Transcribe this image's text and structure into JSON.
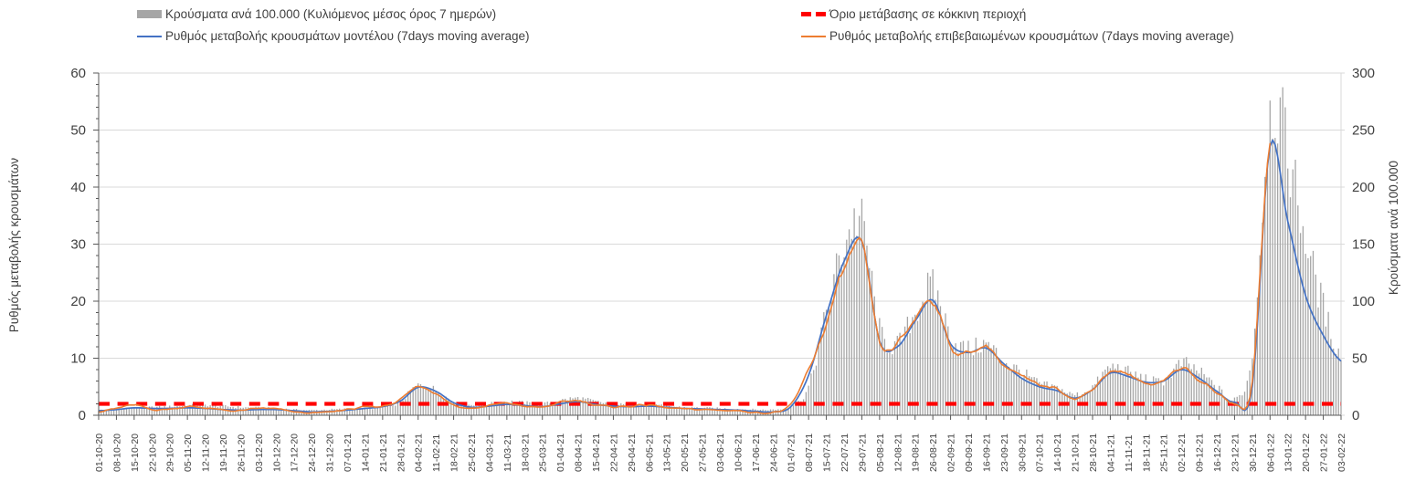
{
  "legend": {
    "bars": "Κρούσματα ανά 100.000 (Κυλιόμενος μέσος όρος 7 ημερών)",
    "model": "Ρυθμός μεταβολής κρουσμάτων μοντέλου (7days moving average)",
    "threshold": "Όριο μετάβασης σε κόκκινη περιοχή",
    "confirmed": "Ρυθμός μεταβολής επιβεβαιωμένων κρουσμάτων (7days moving average)"
  },
  "axes": {
    "left_title": "Ρυθμός μεταβολής κρουσμάτων",
    "right_title": "Κρούσματα ανά 100.000",
    "left_ticks": [
      0,
      10,
      20,
      30,
      40,
      50,
      60
    ],
    "right_ticks": [
      0,
      50,
      100,
      150,
      200,
      250,
      300
    ],
    "left_ylim": [
      0,
      60
    ],
    "right_ylim": [
      0,
      300
    ]
  },
  "colors": {
    "bars": "#a6a6a6",
    "model": "#4472c4",
    "confirmed": "#ed7d31",
    "threshold": "#ff0000",
    "gridline": "#d9d9d9",
    "axis": "#595959",
    "text": "#404040"
  },
  "chart_data": {
    "type": "bar",
    "subtype": "combo bar+line, dual axis, weekly-labelled daily series",
    "title": "",
    "xlabel": "",
    "legend_position": "top",
    "grid": "horizontal only",
    "categories": [
      "01-10-20",
      "08-10-20",
      "15-10-20",
      "22-10-20",
      "29-10-20",
      "05-11-20",
      "12-11-20",
      "19-11-20",
      "26-11-20",
      "03-12-20",
      "10-12-20",
      "17-12-20",
      "24-12-20",
      "31-12-20",
      "07-01-21",
      "14-01-21",
      "21-01-21",
      "28-01-21",
      "04-02-21",
      "11-02-21",
      "18-02-21",
      "25-02-21",
      "04-03-21",
      "11-03-21",
      "18-03-21",
      "25-03-21",
      "01-04-21",
      "08-04-21",
      "15-04-21",
      "22-04-21",
      "29-04-21",
      "06-05-21",
      "13-05-21",
      "20-05-21",
      "27-05-21",
      "03-06-21",
      "10-06-21",
      "17-06-21",
      "24-06-21",
      "01-07-21",
      "08-07-21",
      "15-07-21",
      "22-07-21",
      "29-07-21",
      "05-08-21",
      "12-08-21",
      "19-08-21",
      "26-08-21",
      "02-09-21",
      "09-09-21",
      "16-09-21",
      "23-09-21",
      "30-09-21",
      "07-10-21",
      "14-10-21",
      "21-10-21",
      "28-10-21",
      "04-11-21",
      "11-11-21",
      "18-11-21",
      "25-11-21",
      "02-12-21",
      "09-12-21",
      "16-12-21",
      "23-12-21",
      "30-12-21",
      "06-01-22",
      "13-01-22",
      "20-01-22",
      "27-01-22",
      "03-02-22"
    ],
    "series": [
      {
        "name": "Κρούσματα ανά 100.000 (Κυλιόμενος μέσος όρος 7 ημερών)",
        "type": "bar",
        "axis": "right",
        "color": "#a6a6a6",
        "values": [
          4.5,
          5.5,
          6.5,
          7,
          7.5,
          8.5,
          9,
          8,
          7,
          6.5,
          6,
          5,
          4.5,
          5,
          5.5,
          6,
          7,
          12,
          26,
          22,
          12,
          9,
          10,
          12,
          11,
          10,
          13,
          15,
          12,
          10,
          9,
          9,
          8,
          7,
          6.5,
          6,
          5.5,
          5,
          5,
          8,
          25,
          90,
          150,
          168,
          75,
          62,
          90,
          112,
          70,
          58,
          62,
          48,
          38,
          28,
          24,
          18,
          25,
          42,
          38,
          32,
          30,
          45,
          38,
          25,
          14,
          55,
          265,
          230,
          155,
          95,
          52
        ]
      },
      {
        "name": "Ρυθμός μεταβολής κρουσμάτων μοντέλου (7days moving average)",
        "type": "line",
        "axis": "left",
        "color": "#4472c4",
        "values": [
          0.8,
          1.0,
          1.3,
          1.2,
          1.2,
          1.3,
          1.2,
          1.0,
          0.9,
          1.0,
          1.0,
          0.8,
          0.6,
          0.7,
          0.9,
          1.2,
          1.5,
          2.5,
          4.9,
          4.2,
          2.2,
          1.4,
          1.6,
          1.9,
          1.7,
          1.5,
          2.0,
          2.4,
          1.9,
          1.6,
          1.5,
          1.6,
          1.4,
          1.2,
          1.1,
          1.0,
          0.9,
          0.7,
          0.6,
          1.5,
          7,
          17.5,
          27,
          30.5,
          13,
          12,
          16.5,
          20.2,
          12.5,
          11,
          11.8,
          9,
          6.5,
          5.0,
          4.3,
          3.0,
          4.5,
          7.4,
          6.8,
          5.8,
          6.0,
          8.0,
          6.5,
          4.2,
          2.3,
          5.0,
          47.2,
          34,
          21,
          14,
          9.5
        ]
      },
      {
        "name": "Ρυθμός μεταβολής επιβεβαιωμένων κρουσμάτων (7days moving average)",
        "type": "line",
        "axis": "left",
        "color": "#ed7d31",
        "values": [
          0.7,
          1.2,
          1.8,
          1.0,
          1.1,
          1.5,
          1.3,
          0.9,
          0.8,
          1.2,
          1.1,
          0.6,
          0.4,
          0.6,
          1.0,
          1.4,
          1.6,
          2.8,
          5.1,
          3.9,
          1.8,
          1.2,
          1.7,
          2.1,
          1.6,
          1.4,
          2.2,
          2.6,
          1.8,
          1.5,
          1.6,
          1.8,
          1.3,
          1.1,
          1.0,
          0.9,
          0.8,
          0.5,
          0.5,
          1.8,
          8,
          16,
          25.5,
          29.5,
          12.5,
          12.5,
          17,
          20.5,
          12,
          10.8,
          12.3,
          8.7,
          6.8,
          5.3,
          4.8,
          2.8,
          4.7,
          7.7,
          7.1,
          5.5,
          6.2,
          8.3,
          6.2,
          4.0,
          2.1,
          5.5,
          51,
          null,
          null,
          null,
          null
        ]
      },
      {
        "name": "Όριο μετάβασης σε κόκκινη περιοχή",
        "type": "threshold-line",
        "axis": "right",
        "color": "#ff0000",
        "value": 10
      }
    ],
    "ylabel_left": "Ρυθμός μεταβολής κρουσμάτων",
    "ylabel_right": "Κρούσματα ανά 100.000",
    "ylim_left": [
      0,
      60
    ],
    "ylim_right": [
      0,
      300
    ]
  }
}
